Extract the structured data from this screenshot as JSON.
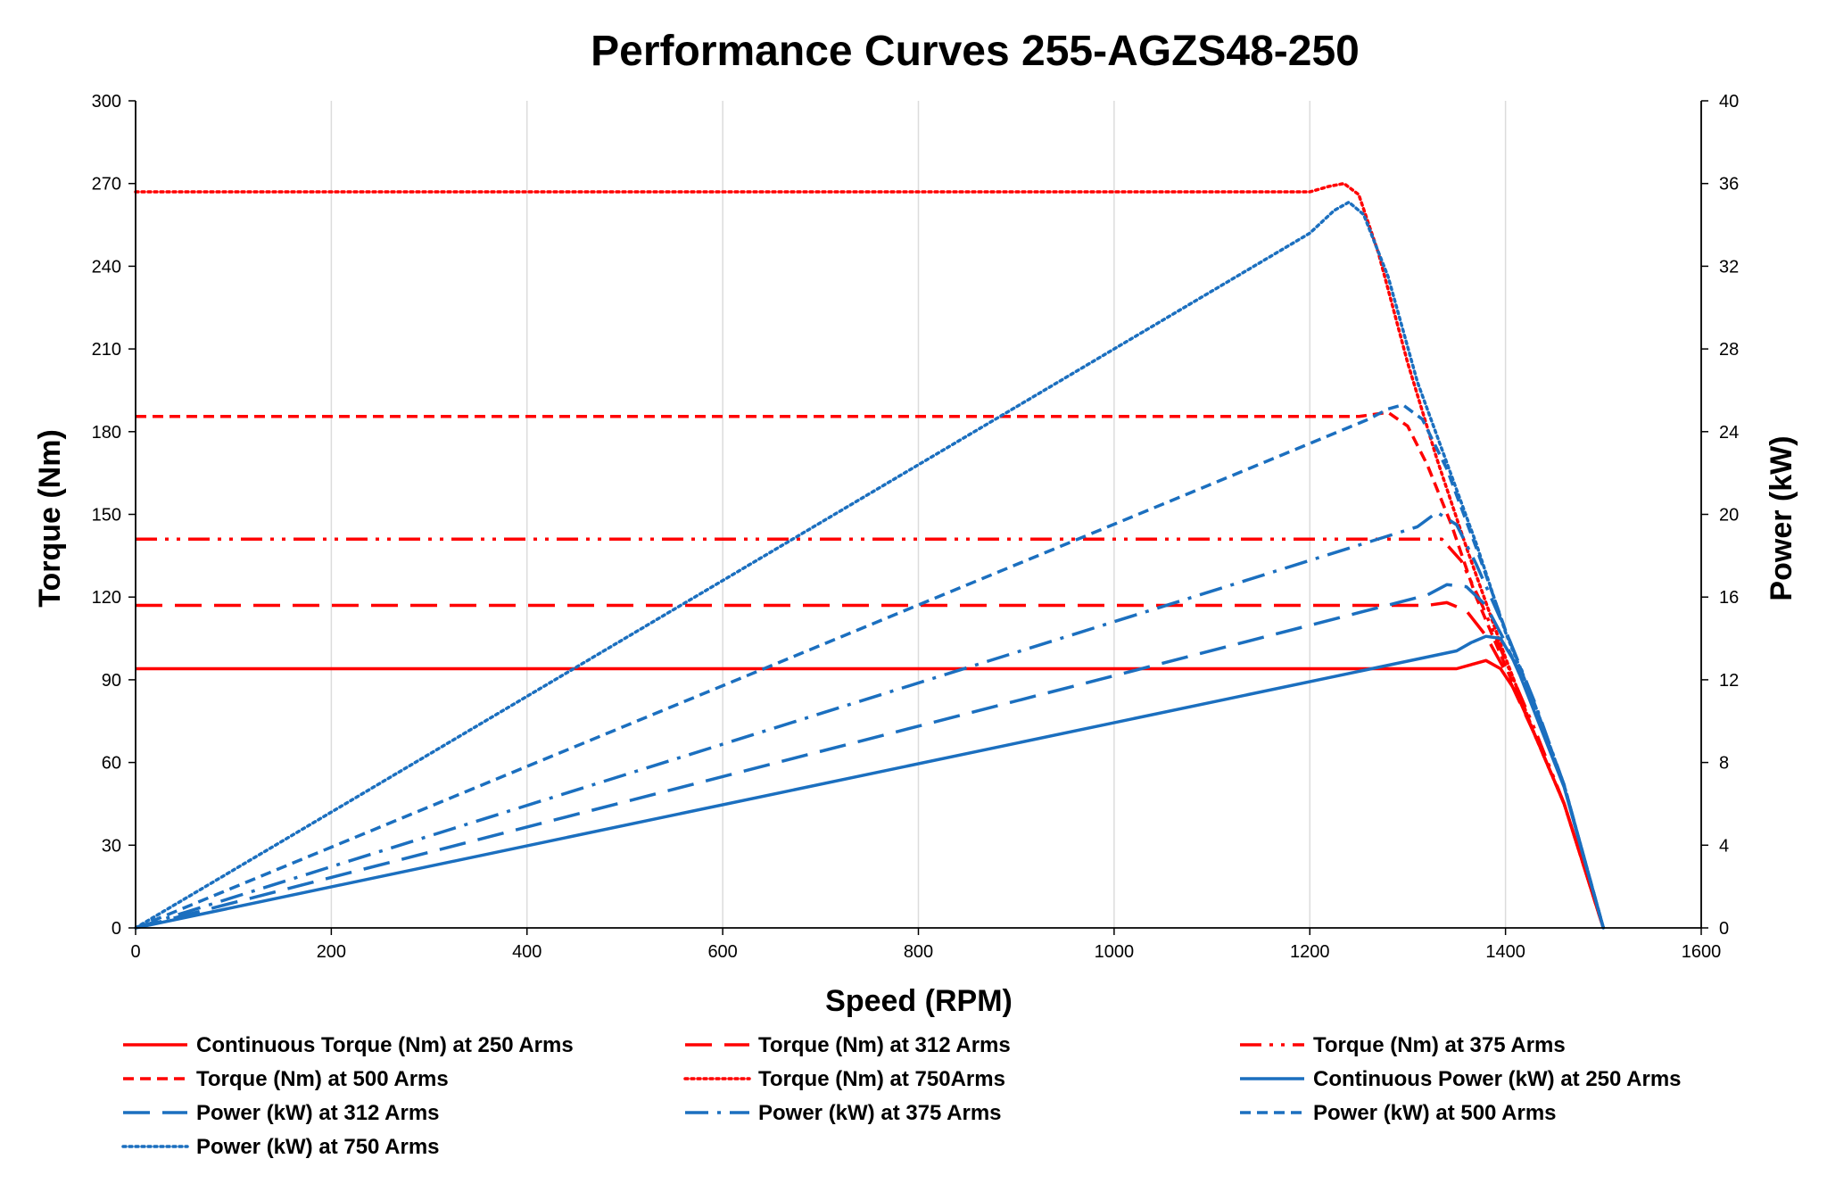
{
  "chart_data": {
    "type": "line",
    "title": "Performance Curves 255-AGZS48-250",
    "xlabel": "Speed (RPM)",
    "ylabel": "Torque (Nm)",
    "y2label": "Power (kW)",
    "xlim": [
      0,
      1600
    ],
    "ylim": [
      0,
      300
    ],
    "y2lim": [
      0,
      40
    ],
    "xticks": [
      "0",
      "200",
      "400",
      "600",
      "800",
      "1000",
      "1200",
      "1400",
      "1600"
    ],
    "yticks": [
      "0",
      "30",
      "60",
      "90",
      "120",
      "150",
      "180",
      "210",
      "240",
      "270",
      "300"
    ],
    "y2ticks": [
      "0",
      "4",
      "8",
      "12",
      "16",
      "20",
      "24",
      "28",
      "32",
      "36",
      "40"
    ],
    "grid": "vertical",
    "legend_position": "bottom",
    "colors": {
      "torque": "#ff0000",
      "power": "#1b6fbf"
    },
    "series": [
      {
        "name": "Continuous Torque (Nm) at 250 Arms",
        "axis": "left",
        "color": "#ff0000",
        "style": "solid",
        "points": [
          [
            0,
            94
          ],
          [
            1350,
            94
          ],
          [
            1365,
            95.5
          ],
          [
            1380,
            97
          ],
          [
            1395,
            94
          ],
          [
            1410,
            86
          ],
          [
            1430,
            70
          ],
          [
            1460,
            45
          ],
          [
            1500,
            0
          ]
        ]
      },
      {
        "name": "Torque (Nm) at 312 Arms",
        "axis": "left",
        "color": "#ff0000",
        "style": "longdash",
        "points": [
          [
            0,
            117
          ],
          [
            1320,
            117
          ],
          [
            1340,
            118
          ],
          [
            1360,
            115
          ],
          [
            1380,
            106
          ],
          [
            1400,
            93
          ],
          [
            1430,
            70
          ],
          [
            1460,
            45
          ],
          [
            1500,
            0
          ]
        ]
      },
      {
        "name": "Torque (Nm) at 375 Arms",
        "axis": "left",
        "color": "#ff0000",
        "style": "dashdotdot",
        "points": [
          [
            0,
            141
          ],
          [
            1320,
            141
          ],
          [
            1335,
            141
          ],
          [
            1355,
            133
          ],
          [
            1375,
            118
          ],
          [
            1400,
            97
          ],
          [
            1430,
            72
          ],
          [
            1460,
            45
          ],
          [
            1500,
            0
          ]
        ]
      },
      {
        "name": "Torque (Nm) at 500 Arms",
        "axis": "left",
        "color": "#ff0000",
        "style": "shortdash",
        "points": [
          [
            0,
            185.5
          ],
          [
            1250,
            185.5
          ],
          [
            1280,
            187
          ],
          [
            1300,
            182
          ],
          [
            1320,
            168
          ],
          [
            1345,
            146
          ],
          [
            1370,
            120
          ],
          [
            1400,
            95
          ],
          [
            1430,
            70
          ],
          [
            1460,
            45
          ],
          [
            1500,
            0
          ]
        ]
      },
      {
        "name": "Torque (Nm) at 750Arms",
        "axis": "left",
        "color": "#ff0000",
        "style": "dotted",
        "points": [
          [
            0,
            267
          ],
          [
            1200,
            267
          ],
          [
            1220,
            269
          ],
          [
            1235,
            270
          ],
          [
            1250,
            266
          ],
          [
            1270,
            245
          ],
          [
            1300,
            205
          ],
          [
            1330,
            170
          ],
          [
            1360,
            138
          ],
          [
            1400,
            98
          ],
          [
            1430,
            70
          ],
          [
            1460,
            45
          ],
          [
            1500,
            0
          ]
        ]
      },
      {
        "name": "Continuous Power (kW) at 250 Arms",
        "axis": "right",
        "color": "#1b6fbf",
        "style": "solid",
        "points": [
          [
            0,
            0
          ],
          [
            1350,
            13.4
          ],
          [
            1365,
            13.8
          ],
          [
            1380,
            14.1
          ],
          [
            1395,
            14
          ],
          [
            1410,
            12.8
          ],
          [
            1430,
            10.4
          ],
          [
            1460,
            6.8
          ],
          [
            1500,
            0
          ]
        ]
      },
      {
        "name": "Power (kW) at 312 Arms",
        "axis": "right",
        "color": "#1b6fbf",
        "style": "longdash",
        "points": [
          [
            0,
            0
          ],
          [
            1320,
            16.1
          ],
          [
            1340,
            16.6
          ],
          [
            1360,
            16.5
          ],
          [
            1380,
            15.6
          ],
          [
            1400,
            13.8
          ],
          [
            1430,
            10.6
          ],
          [
            1460,
            6.9
          ],
          [
            1500,
            0
          ]
        ]
      },
      {
        "name": "Power (kW) at 375 Arms",
        "axis": "right",
        "color": "#1b6fbf",
        "style": "dashdot",
        "points": [
          [
            0,
            0
          ],
          [
            1310,
            19.4
          ],
          [
            1330,
            20.1
          ],
          [
            1350,
            19.5
          ],
          [
            1370,
            17.6
          ],
          [
            1400,
            14.4
          ],
          [
            1430,
            10.9
          ],
          [
            1460,
            6.9
          ],
          [
            1500,
            0
          ]
        ]
      },
      {
        "name": "Power (kW) at 500 Arms",
        "axis": "right",
        "color": "#1b6fbf",
        "style": "shortdash",
        "points": [
          [
            0,
            0
          ],
          [
            1260,
            24.6
          ],
          [
            1280,
            25.1
          ],
          [
            1295,
            25.3
          ],
          [
            1315,
            24.6
          ],
          [
            1340,
            22.2
          ],
          [
            1370,
            18.4
          ],
          [
            1400,
            14.4
          ],
          [
            1430,
            10.8
          ],
          [
            1460,
            6.9
          ],
          [
            1500,
            0
          ]
        ]
      },
      {
        "name": "Power (kW) at 750 Arms",
        "axis": "right",
        "color": "#1b6fbf",
        "style": "dotted",
        "points": [
          [
            0,
            0
          ],
          [
            1200,
            33.6
          ],
          [
            1225,
            34.7
          ],
          [
            1240,
            35.1
          ],
          [
            1255,
            34.5
          ],
          [
            1280,
            31.5
          ],
          [
            1310,
            26.4
          ],
          [
            1340,
            22.5
          ],
          [
            1370,
            18.6
          ],
          [
            1400,
            14.3
          ],
          [
            1430,
            10.8
          ],
          [
            1460,
            6.9
          ],
          [
            1500,
            0
          ]
        ]
      }
    ]
  }
}
